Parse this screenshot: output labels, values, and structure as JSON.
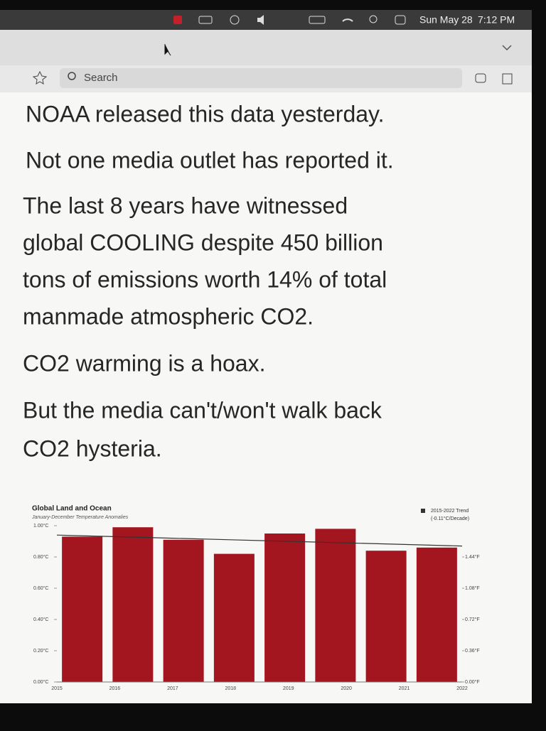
{
  "menubar": {
    "date": "Sun May 28",
    "time": "7:12 PM"
  },
  "toolbar": {
    "search": "Search"
  },
  "tweet": {
    "paragraphs": [
      [
        "NOAA released this data yesterday."
      ],
      [
        "Not one media outlet has reported it."
      ],
      [
        "The last 8 years have witnessed",
        "global COOLING despite 450 billion",
        "tons of emissions  worth 14% of total",
        "manmade atmospheric CO2."
      ],
      [
        "CO2 warming is a hoax."
      ],
      [
        "But the media can't/won't walk back",
        "CO2 hysteria."
      ]
    ]
  },
  "chart_data": {
    "type": "bar",
    "title": "Global Land and Ocean",
    "subtitle": "January-December Temperature Anomalies",
    "categories": [
      "2015",
      "2016",
      "2017",
      "2018",
      "2019",
      "2020",
      "2021",
      "2022"
    ],
    "values": [
      0.93,
      0.99,
      0.91,
      0.82,
      0.95,
      0.98,
      0.84,
      0.86
    ],
    "color": "#a3151f",
    "trend": {
      "name": "2015-2022 Trend",
      "note": "(-0.11°C/Decade)",
      "color": "#333333",
      "values": [
        0.94,
        0.93,
        0.92,
        0.91,
        0.9,
        0.89,
        0.88,
        0.87
      ]
    },
    "ylim": [
      0,
      1
    ],
    "yticks": [
      {
        "value": 0,
        "label": "0.00°C"
      },
      {
        "value": 0.2,
        "label": "0.20°C"
      },
      {
        "value": 0.4,
        "label": "0.40°C"
      },
      {
        "value": 0.6,
        "label": "0.60°C"
      },
      {
        "value": 0.8,
        "label": "0.80°C"
      },
      {
        "value": 1,
        "label": "1.00°C"
      }
    ],
    "y2lim": [
      0,
      1.8
    ],
    "y2ticks": [
      {
        "value": 0,
        "label": "0.00°F"
      },
      {
        "value": 0.36,
        "label": "0.36°F"
      },
      {
        "value": 0.72,
        "label": "0.72°F"
      },
      {
        "value": 1.08,
        "label": "1.08°F"
      },
      {
        "value": 1.44,
        "label": "1.44°F"
      }
    ]
  }
}
